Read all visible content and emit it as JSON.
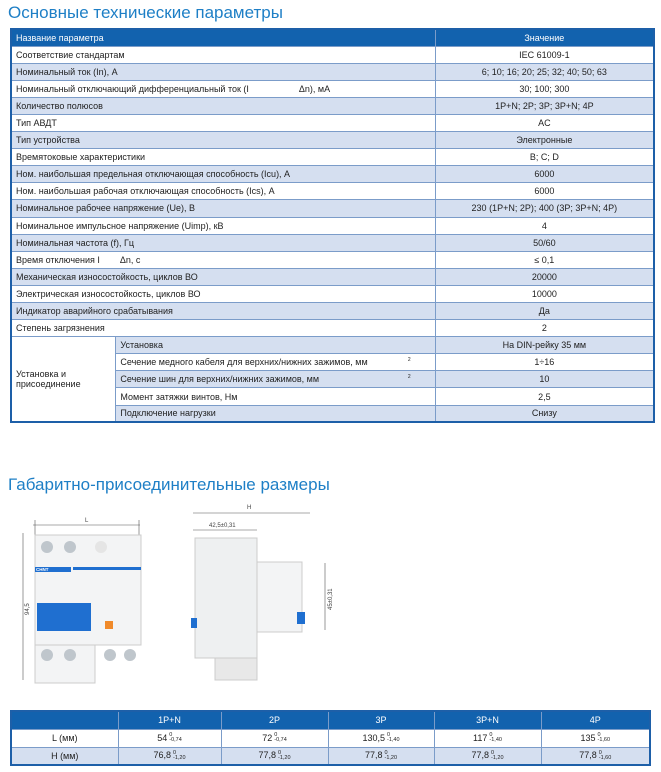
{
  "titles": {
    "params": "Основные технические параметры",
    "dims": "Габаритно-присоединительные размеры"
  },
  "params_table": {
    "headers": [
      "Название параметра",
      "Значение"
    ],
    "rows": [
      [
        "Соответствие стандартам",
        "IEC 61009-1"
      ],
      [
        "Номинальный ток (In), А",
        "6; 10; 16; 20; 25; 32; 40; 50; 63"
      ],
      [
        "Номинальный отключающий дифференциальный ток (I                    Δn), мА",
        "30; 100; 300"
      ],
      [
        "Количество полюсов",
        "1P+N; 2P; 3P; 3P+N; 4P"
      ],
      [
        "Тип АВДТ",
        "AC"
      ],
      [
        "Тип устройства",
        "Электронные"
      ],
      [
        "Времятоковые характеристики",
        "B; C; D"
      ],
      [
        "Ном. наибольшая предельная отключающая способность (Icu), А",
        "6000"
      ],
      [
        "Ном. наибольшая рабочая отключающая способность (Ics), А",
        "6000"
      ],
      [
        "Номинальное рабочее напряжение (Ue), В",
        "230 (1P+N; 2P); 400 (3P; 3P+N; 4P)"
      ],
      [
        "Номинальное импульсное напряжение (Uimp), кВ",
        "4"
      ],
      [
        "Номинальная частота (f), Гц",
        "50/60"
      ],
      [
        "Время отключения I        Δn, с",
        "≤ 0,1"
      ],
      [
        "Механическая износостойкость, циклов ВО",
        "20000"
      ],
      [
        "Электрическая износостойкость, циклов ВО",
        "10000"
      ],
      [
        "Индикатор аварийного срабатывания",
        "Да"
      ],
      [
        "Степень загрязнения",
        "2"
      ]
    ],
    "group": {
      "label": "Установка и присоединение",
      "rows": [
        [
          "Установка",
          "На DIN-рейку 35 мм",
          ""
        ],
        [
          "Сечение медного кабеля для верхних/нижних зажимов, мм",
          "1÷16",
          "2"
        ],
        [
          "Сечение шин для верхних/нижних зажимов, мм",
          "10",
          "2"
        ],
        [
          "Момент затяжки винтов, Нм",
          "2,5",
          ""
        ],
        [
          "Подключение нагрузки",
          "Снизу",
          ""
        ]
      ]
    }
  },
  "drawing": {
    "brand": "CHNT",
    "L": "L",
    "H": "H",
    "height_dim": "94,5",
    "height_tol_top": "0",
    "height_tol_bottom": "-1,40",
    "dim_42": "42,5±0,31",
    "dim_45": "45±0,31"
  },
  "dims_table": {
    "headers": [
      "",
      "1P+N",
      "2P",
      "3P",
      "3P+N",
      "4P"
    ],
    "rows": [
      {
        "label": "L (мм)",
        "cells": [
          [
            "54",
            "0",
            "-0,74"
          ],
          [
            "72",
            "0",
            "-0,74"
          ],
          [
            "130,5",
            "0",
            "-1,40"
          ],
          [
            "117",
            "0",
            "-1,40"
          ],
          [
            "135",
            "0",
            "-1,60"
          ]
        ]
      },
      {
        "label": "H (мм)",
        "cells": [
          [
            "76,8",
            "0",
            "-1,20"
          ],
          [
            "77,8",
            "0",
            "-1,20"
          ],
          [
            "77,8",
            "0",
            "-1,20"
          ],
          [
            "77,8",
            "0",
            "-1,20"
          ],
          [
            "77,8",
            "0",
            "-1,60"
          ]
        ]
      }
    ]
  },
  "colors": {
    "header": "#1262ae",
    "stripe": "#d5dff0",
    "title": "#1e7fc6",
    "accent_orange": "#f08a2a",
    "breaker_blue": "#1f6fd0"
  }
}
